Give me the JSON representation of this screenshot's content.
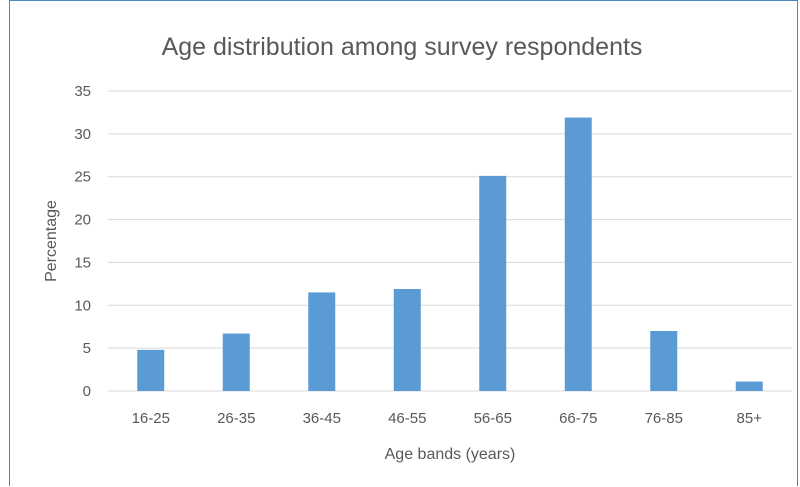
{
  "chart_data": {
    "type": "bar",
    "title": "Age distribution among survey respondents",
    "xlabel": "Age bands (years)",
    "ylabel": "Percentage",
    "categories": [
      "16-25",
      "26-35",
      "36-45",
      "46-55",
      "56-65",
      "66-75",
      "76-85",
      "85+"
    ],
    "values": [
      4.8,
      6.7,
      11.5,
      11.9,
      25.1,
      31.9,
      7.0,
      1.1
    ],
    "ylim": [
      0,
      35
    ],
    "yticks": [
      "0",
      "5",
      "10",
      "15",
      "20",
      "25",
      "30",
      "35"
    ],
    "grid": true,
    "legend": "none",
    "bar_color": "#5b9bd5"
  }
}
